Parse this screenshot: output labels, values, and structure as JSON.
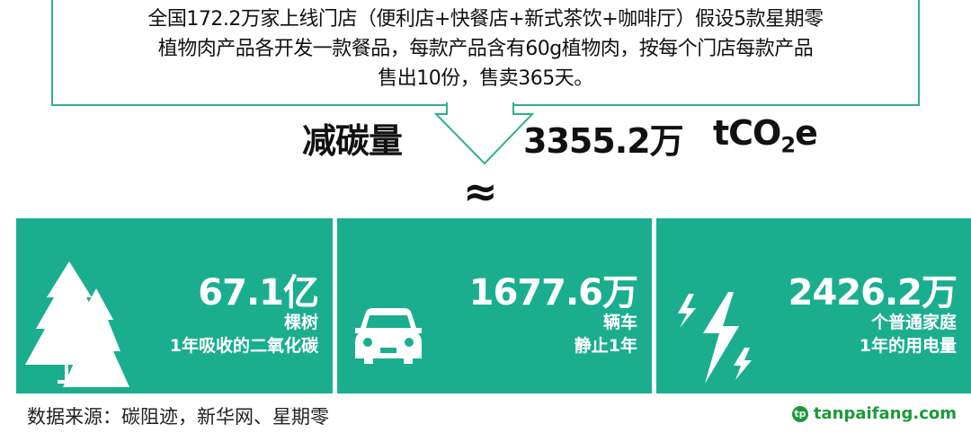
{
  "assumption": {
    "line1": "全国172.2万家上线门店（便利店+快餐店+新式茶饮+咖啡厅）假设5款星期零",
    "line2": "植物肉产品各开发一款餐品，每款产品含有60g植物肉，按每个门店每款产品",
    "line3": "售出10份，售卖365天。"
  },
  "reduction": {
    "label": "减碳量",
    "value": "3355.2万",
    "unit_prefix": "tCO",
    "unit_sub": "2",
    "unit_suffix": "e"
  },
  "approx_symbol": "≈",
  "panels": [
    {
      "icon": "tree-icon",
      "value": "67.1亿",
      "line1": "棵树",
      "line2": "1年吸收的二氧化碳"
    },
    {
      "icon": "car-icon",
      "value": "1677.6万",
      "line1": "辆车",
      "line2": "静止1年"
    },
    {
      "icon": "lightning-icon",
      "value": "2426.2万",
      "line1": "个普通家庭",
      "line2": "1年的用电量"
    }
  ],
  "footer": {
    "source": "数据来源：碳阻迹，新华网、星期零",
    "watermark": "tanpaifang.com"
  },
  "colors": {
    "accent": "#1aae8f",
    "border": "#2fae93"
  }
}
